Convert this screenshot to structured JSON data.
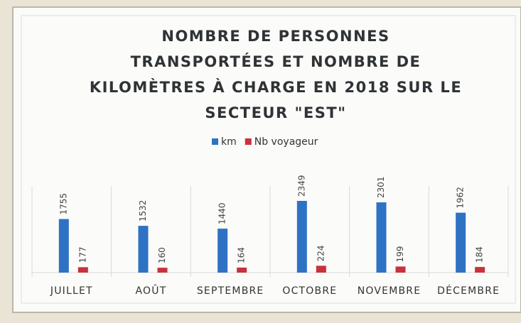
{
  "chart_data": {
    "type": "bar",
    "title": [
      "NOMBRE DE PERSONNES",
      "TRANSPORTÉES ET NOMBRE DE",
      "KILOMÈTRES À CHARGE EN 2018 SUR LE",
      "SECTEUR \"EST\""
    ],
    "categories": [
      "JUILLET",
      "AOÛT",
      "SEPTEMBRE",
      "OCTOBRE",
      "NOVEMBRE",
      "DÉCEMBRE"
    ],
    "series": [
      {
        "name": "km",
        "color": "#2e72c4",
        "values": [
          1755,
          1532,
          1440,
          2349,
          2301,
          1962
        ]
      },
      {
        "name": "Nb voyageur",
        "color": "#c8313d",
        "values": [
          177,
          160,
          164,
          224,
          199,
          184
        ]
      }
    ],
    "ylim": [
      0,
      3000
    ]
  }
}
